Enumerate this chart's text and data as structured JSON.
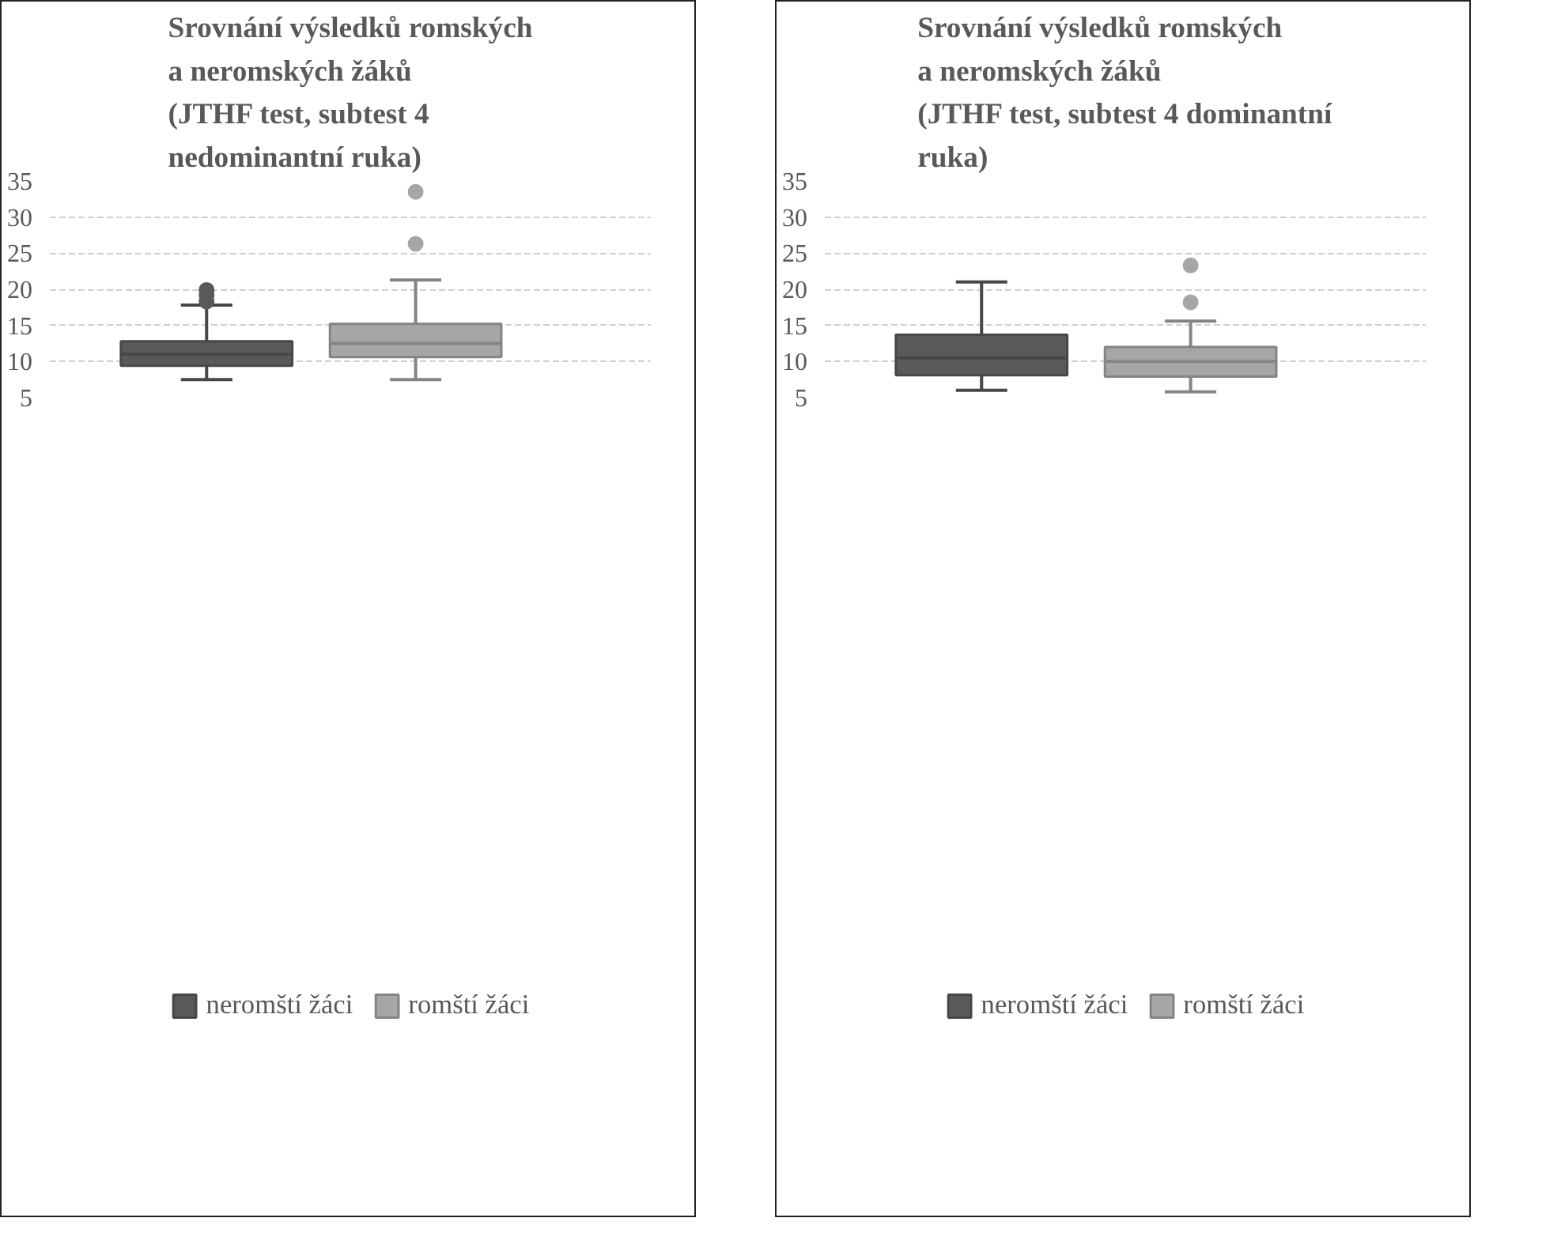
{
  "chart_data": [
    {
      "type": "box",
      "title": "Srovnání výsledků romských\na neromských žáků\n(JTHF test, subtest 4\nnedominantní ruka)",
      "categories": [
        null
      ],
      "ylim": [
        5,
        35
      ],
      "yticks": [
        5,
        10,
        15,
        20,
        25,
        30,
        35
      ],
      "grid": "y",
      "legend": "bottom",
      "marker": "circle",
      "series": [
        {
          "name": "neromští žáci",
          "color": "#595959",
          "boxes": [
            {
              "low": 7.5,
              "q1": 9.4,
              "median": 11.0,
              "q3": 12.8,
              "high": 17.8,
              "outliers": [
                18.3,
                19.2,
                19.9
              ]
            }
          ]
        },
        {
          "name": "romští žáci",
          "color": "#a6a6a6",
          "boxes": [
            {
              "low": 7.5,
              "q1": 10.6,
              "median": 12.5,
              "q3": 15.2,
              "high": 21.3,
              "outliers": [
                26.3,
                33.5
              ]
            }
          ]
        }
      ]
    },
    {
      "type": "box",
      "title": "Srovnání výsledků romských\na neromských žáků\n(JTHF test, subtest 4 dominantní\nruka)",
      "categories": [
        null
      ],
      "ylim": [
        5,
        35
      ],
      "yticks": [
        5,
        10,
        15,
        20,
        25,
        30,
        35
      ],
      "grid": "y",
      "legend": "bottom",
      "marker": "circle",
      "series": [
        {
          "name": "neromští žáci",
          "color": "#595959",
          "boxes": [
            {
              "low": 6.0,
              "q1": 8.1,
              "median": 10.5,
              "q3": 13.7,
              "high": 21.0
            }
          ]
        },
        {
          "name": "romští žáci",
          "color": "#a6a6a6",
          "boxes": [
            {
              "low": 5.8,
              "q1": 7.9,
              "median": 10.0,
              "q3": 12.0,
              "high": 15.6,
              "outliers": [
                18.2,
                23.3
              ]
            }
          ]
        }
      ]
    }
  ]
}
